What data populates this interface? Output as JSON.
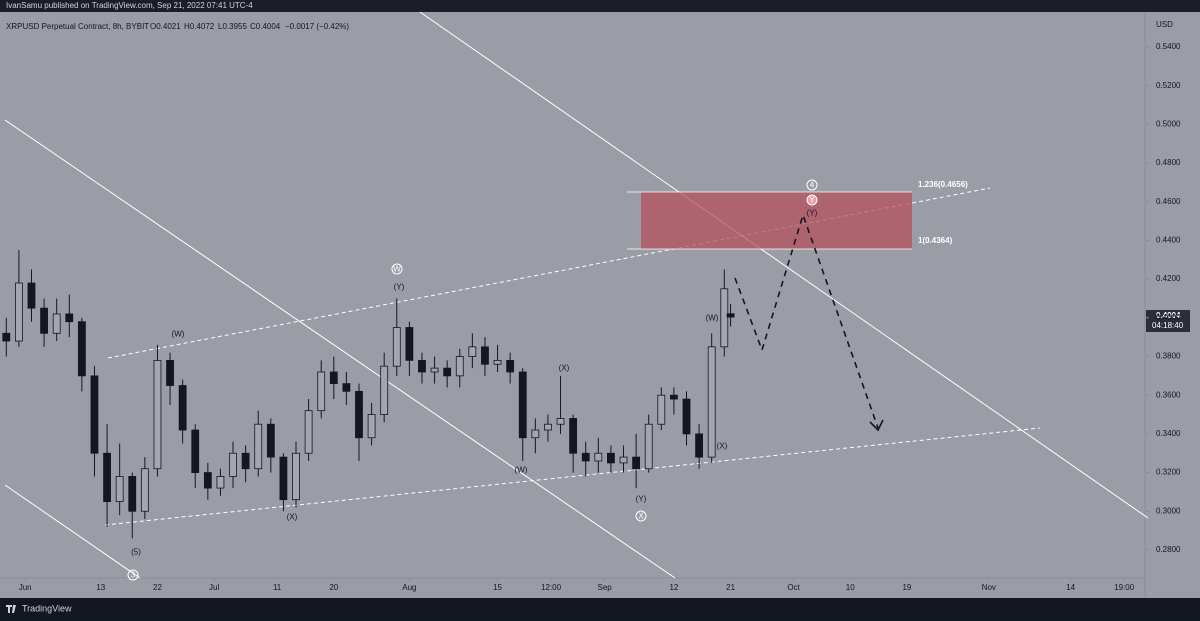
{
  "header": {
    "publisher": "IvanSamu published on TradingView.com, Sep 21, 2022 07:41 UTC-4"
  },
  "chart_data": {
    "type": "candlestick",
    "symbol": "XRPUSD Perpetual Contract, 8h, BYBIT",
    "ohlc_readout": [
      "O0.4021",
      "H0.4072",
      "L0.3955",
      "C0.4004",
      "−0.0017 (−0.42%)"
    ],
    "currency": "USD",
    "last_price": "0.4004",
    "countdown": "04:18:40",
    "up_color": "#a3a6ae",
    "down_color": "#131722",
    "x": [
      -3,
      -1,
      1,
      3,
      5,
      7,
      9,
      11,
      13,
      15,
      17,
      19,
      21,
      23,
      25,
      27,
      29,
      31,
      33,
      35,
      37,
      39,
      41,
      43,
      45,
      47,
      49,
      51,
      53,
      55,
      57,
      59,
      61,
      63,
      65,
      67,
      69,
      71,
      73,
      75,
      77,
      79,
      81,
      83,
      85,
      87,
      89,
      91,
      93,
      95,
      97,
      99,
      101,
      103,
      105,
      107,
      109,
      111,
      112
    ],
    "open": [
      0.392,
      0.388,
      0.418,
      0.405,
      0.392,
      0.402,
      0.398,
      0.37,
      0.33,
      0.305,
      0.318,
      0.3,
      0.322,
      0.378,
      0.365,
      0.342,
      0.32,
      0.312,
      0.318,
      0.33,
      0.322,
      0.345,
      0.328,
      0.306,
      0.33,
      0.352,
      0.372,
      0.366,
      0.362,
      0.338,
      0.35,
      0.375,
      0.395,
      0.378,
      0.372,
      0.374,
      0.37,
      0.38,
      0.385,
      0.376,
      0.378,
      0.372,
      0.338,
      0.342,
      0.345,
      0.348,
      0.33,
      0.326,
      0.33,
      0.325,
      0.328,
      0.322,
      0.345,
      0.36,
      0.358,
      0.34,
      0.328,
      0.385,
      0.4021
    ],
    "high": [
      0.4,
      0.435,
      0.425,
      0.41,
      0.41,
      0.412,
      0.4,
      0.375,
      0.345,
      0.335,
      0.32,
      0.328,
      0.386,
      0.382,
      0.368,
      0.345,
      0.325,
      0.322,
      0.336,
      0.334,
      0.352,
      0.348,
      0.33,
      0.336,
      0.358,
      0.378,
      0.38,
      0.372,
      0.366,
      0.356,
      0.382,
      0.41,
      0.398,
      0.382,
      0.38,
      0.378,
      0.384,
      0.392,
      0.39,
      0.386,
      0.382,
      0.374,
      0.348,
      0.35,
      0.37,
      0.35,
      0.336,
      0.338,
      0.334,
      0.334,
      0.34,
      0.35,
      0.364,
      0.364,
      0.362,
      0.345,
      0.392,
      0.425,
      0.4072
    ],
    "low": [
      0.38,
      0.385,
      0.398,
      0.385,
      0.388,
      0.39,
      0.362,
      0.318,
      0.292,
      0.298,
      0.286,
      0.296,
      0.318,
      0.355,
      0.335,
      0.312,
      0.306,
      0.308,
      0.312,
      0.315,
      0.318,
      0.32,
      0.3,
      0.302,
      0.326,
      0.348,
      0.358,
      0.355,
      0.326,
      0.334,
      0.346,
      0.37,
      0.37,
      0.366,
      0.366,
      0.364,
      0.364,
      0.374,
      0.37,
      0.372,
      0.366,
      0.326,
      0.33,
      0.336,
      0.34,
      0.32,
      0.318,
      0.32,
      0.32,
      0.32,
      0.312,
      0.32,
      0.342,
      0.35,
      0.334,
      0.322,
      0.325,
      0.38,
      0.3955
    ],
    "close": [
      0.388,
      0.418,
      0.405,
      0.392,
      0.402,
      0.398,
      0.37,
      0.33,
      0.305,
      0.318,
      0.3,
      0.322,
      0.378,
      0.365,
      0.342,
      0.32,
      0.312,
      0.318,
      0.33,
      0.322,
      0.345,
      0.328,
      0.306,
      0.33,
      0.352,
      0.372,
      0.366,
      0.362,
      0.338,
      0.35,
      0.375,
      0.395,
      0.378,
      0.372,
      0.374,
      0.37,
      0.38,
      0.385,
      0.376,
      0.378,
      0.372,
      0.338,
      0.342,
      0.345,
      0.348,
      0.33,
      0.326,
      0.33,
      0.325,
      0.328,
      0.322,
      0.345,
      0.36,
      0.358,
      0.34,
      0.328,
      0.385,
      0.415,
      0.4004
    ],
    "xlim": [
      -4,
      177.8
    ],
    "xticks": [
      {
        "value": 0,
        "label": "Jun"
      },
      {
        "value": 12,
        "label": "13"
      },
      {
        "value": 21,
        "label": "22"
      },
      {
        "value": 30,
        "label": "Jul"
      },
      {
        "value": 40,
        "label": "11"
      },
      {
        "value": 49,
        "label": "20"
      },
      {
        "value": 61,
        "label": "Aug"
      },
      {
        "value": 75,
        "label": "15"
      },
      {
        "value": 83.5,
        "label": "12:00"
      },
      {
        "value": 92,
        "label": "Sep"
      },
      {
        "value": 103,
        "label": "12"
      },
      {
        "value": 112,
        "label": "21"
      },
      {
        "value": 122,
        "label": "Oct"
      },
      {
        "value": 131,
        "label": "10"
      },
      {
        "value": 140,
        "label": "19"
      },
      {
        "value": 153,
        "label": "Nov"
      },
      {
        "value": 166,
        "label": "14"
      },
      {
        "value": 174.5,
        "label": "19:00"
      }
    ],
    "ylim": [
      0.2655,
      0.5643
    ],
    "yticks": [
      {
        "value": 0.28,
        "label": "0.2800"
      },
      {
        "value": 0.3,
        "label": "0.3000"
      },
      {
        "value": 0.32,
        "label": "0.3200"
      },
      {
        "value": 0.34,
        "label": "0.3400"
      },
      {
        "value": 0.36,
        "label": "0.3600"
      },
      {
        "value": 0.38,
        "label": "0.3800"
      },
      {
        "value": 0.4,
        "label": "0.4000"
      },
      {
        "value": 0.42,
        "label": "0.4200"
      },
      {
        "value": 0.44,
        "label": "0.4400"
      },
      {
        "value": 0.46,
        "label": "0.4600"
      },
      {
        "value": 0.48,
        "label": "0.4800"
      },
      {
        "value": 0.5,
        "label": "0.5000"
      },
      {
        "value": 0.52,
        "label": "0.5200"
      },
      {
        "value": 0.54,
        "label": "0.5400"
      }
    ],
    "fib_labels": [
      "1.236(0.4656)",
      "1(0.4364)"
    ],
    "annotations": [
      "(W)",
      "(5)",
      "3",
      "(X)",
      "W",
      "(Y)",
      "(X)",
      "(W)",
      "(Y)",
      "X",
      "(W)",
      "(X)",
      "4",
      "Y",
      "(Y)"
    ]
  },
  "footer": {
    "brand": "TradingView"
  }
}
